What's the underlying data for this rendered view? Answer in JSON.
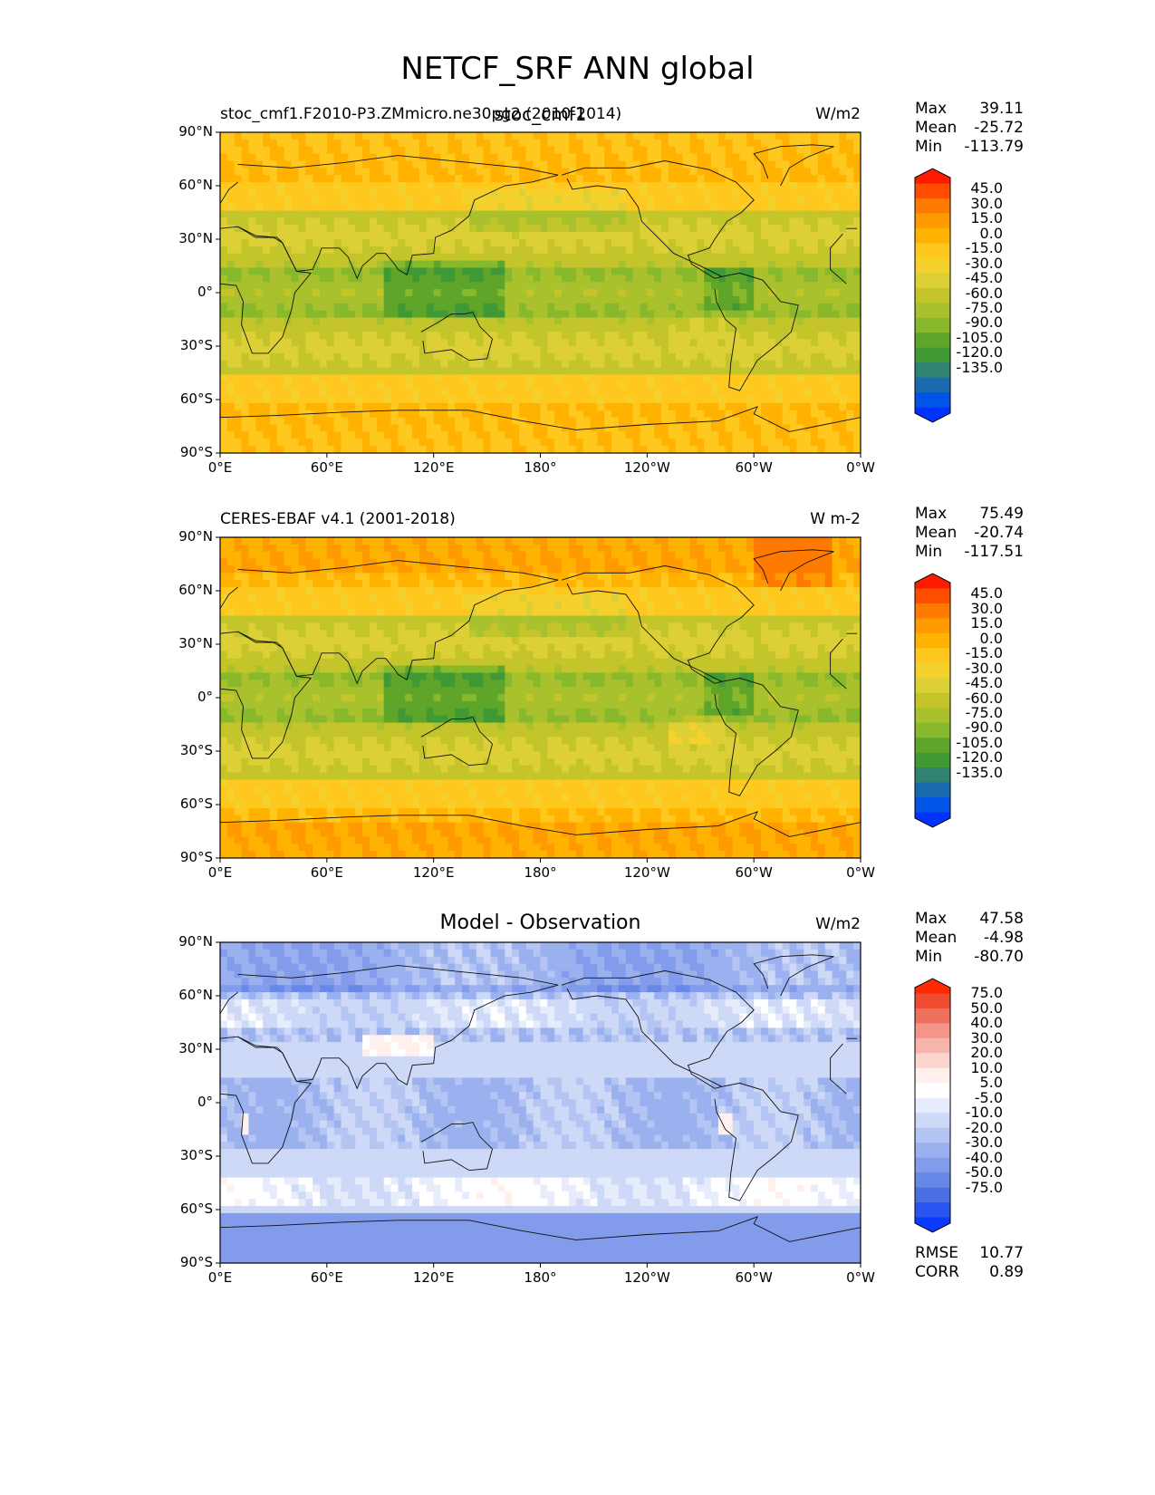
{
  "figure": {
    "title": "NETCF_SRF ANN global"
  },
  "colors": {
    "seq": [
      "#ff1a00",
      "#ff4d00",
      "#ff7a00",
      "#ff9a00",
      "#ffb300",
      "#ffc81e",
      "#f5d12e",
      "#ddd036",
      "#c4c52a",
      "#a8c12c",
      "#88b82b",
      "#5fa52a",
      "#3f9a36",
      "#2f8370",
      "#1a6ab0",
      "#0055e6",
      "#0033ff"
    ],
    "div": [
      "#ff2a00",
      "#f04a30",
      "#f0705e",
      "#f5958a",
      "#f8b5ac",
      "#fcd5cf",
      "#fff0ee",
      "#ffffff",
      "#e6ecfb",
      "#cdd9f7",
      "#b4c5f3",
      "#9bb1ef",
      "#829ceb",
      "#6788e6",
      "#4a70e4",
      "#2a55f0",
      "#0a3bff"
    ]
  },
  "panels": [
    {
      "left_title": "stoc_cmf1.F2010-P3.ZMmicro.ne30pg2 (2010-2014)",
      "center_title": "stoc_cmf1",
      "units": "W/m2",
      "stats": [
        [
          "Max",
          "39.11"
        ],
        [
          "Mean",
          "-25.72"
        ],
        [
          "Min",
          "-113.79"
        ]
      ],
      "colorbar_labels": [
        "45.0",
        "30.0",
        "15.0",
        "0.0",
        "-15.0",
        "-30.0",
        "-45.0",
        "-60.0",
        "-75.0",
        "-90.0",
        "-105.0",
        "-120.0",
        "-135.0"
      ],
      "palette": "seq",
      "variant": "model"
    },
    {
      "left_title": "CERES-EBAF v4.1 (2001-2018)",
      "center_title": "",
      "units": "W m-2",
      "stats": [
        [
          "Max",
          "75.49"
        ],
        [
          "Mean",
          "-20.74"
        ],
        [
          "Min",
          "-117.51"
        ]
      ],
      "colorbar_labels": [
        "45.0",
        "30.0",
        "15.0",
        "0.0",
        "-15.0",
        "-30.0",
        "-45.0",
        "-60.0",
        "-75.0",
        "-90.0",
        "-105.0",
        "-120.0",
        "-135.0"
      ],
      "palette": "seq",
      "variant": "obs"
    },
    {
      "left_title": "",
      "center_title": "Model - Observation",
      "units": "W/m2",
      "stats": [
        [
          "Max",
          "47.58"
        ],
        [
          "Mean",
          "-4.98"
        ],
        [
          "Min",
          "-80.70"
        ]
      ],
      "colorbar_labels": [
        "75.0",
        "50.0",
        "40.0",
        "30.0",
        "20.0",
        "10.0",
        "5.0",
        "-5.0",
        "-10.0",
        "-20.0",
        "-30.0",
        "-40.0",
        "-50.0",
        "-75.0"
      ],
      "palette": "div",
      "variant": "diff",
      "metrics": [
        [
          "RMSE",
          "10.77"
        ],
        [
          "CORR",
          "0.89"
        ]
      ]
    }
  ],
  "chart_data": [
    {
      "type": "heatmap",
      "title": "stoc_cmf1",
      "subtitle": "stoc_cmf1.F2010-P3.ZMmicro.ne30pg2 (2010-2014)",
      "units": "W/m2",
      "x_ticks": [
        "0°E",
        "60°E",
        "120°E",
        "180°",
        "120°W",
        "60°W",
        "0°W"
      ],
      "y_ticks": [
        "90°N",
        "60°N",
        "30°N",
        "0°",
        "30°S",
        "60°S",
        "90°S"
      ],
      "xlim": [
        0,
        360
      ],
      "ylim": [
        -90,
        90
      ],
      "max": 39.11,
      "mean": -25.72,
      "min": -113.79,
      "levels": [
        -135.0,
        -120.0,
        -105.0,
        -90.0,
        -75.0,
        -60.0,
        -45.0,
        -30.0,
        -15.0,
        0.0,
        15.0,
        30.0,
        45.0
      ]
    },
    {
      "type": "heatmap",
      "title": "CERES-EBAF v4.1 (2001-2018)",
      "units": "W m-2",
      "x_ticks": [
        "0°E",
        "60°E",
        "120°E",
        "180°",
        "120°W",
        "60°W",
        "0°W"
      ],
      "y_ticks": [
        "90°N",
        "60°N",
        "30°N",
        "0°",
        "30°S",
        "60°S",
        "90°S"
      ],
      "xlim": [
        0,
        360
      ],
      "ylim": [
        -90,
        90
      ],
      "max": 75.49,
      "mean": -20.74,
      "min": -117.51,
      "levels": [
        -135.0,
        -120.0,
        -105.0,
        -90.0,
        -75.0,
        -60.0,
        -45.0,
        -30.0,
        -15.0,
        0.0,
        15.0,
        30.0,
        45.0
      ]
    },
    {
      "type": "heatmap",
      "title": "Model - Observation",
      "units": "W/m2",
      "x_ticks": [
        "0°E",
        "60°E",
        "120°E",
        "180°",
        "120°W",
        "60°W",
        "0°W"
      ],
      "y_ticks": [
        "90°N",
        "60°N",
        "30°N",
        "0°",
        "30°S",
        "60°S",
        "90°S"
      ],
      "xlim": [
        0,
        360
      ],
      "ylim": [
        -90,
        90
      ],
      "max": 47.58,
      "mean": -4.98,
      "min": -80.7,
      "rmse": 10.77,
      "corr": 0.89,
      "levels": [
        -75.0,
        -50.0,
        -40.0,
        -30.0,
        -20.0,
        -10.0,
        -5.0,
        5.0,
        10.0,
        20.0,
        30.0,
        40.0,
        50.0,
        75.0
      ]
    }
  ]
}
